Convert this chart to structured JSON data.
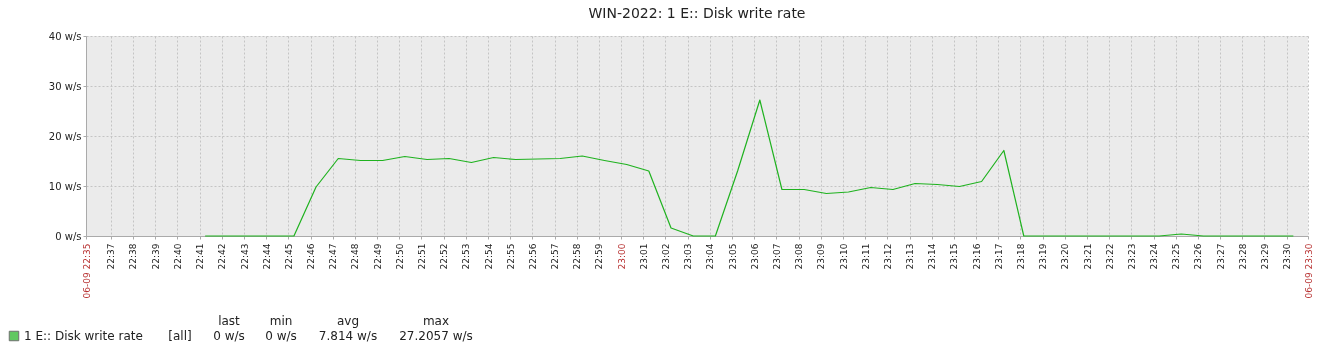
{
  "chart_data": {
    "type": "line",
    "title": "WIN-2022: 1 E:: Disk write rate",
    "xlim": [
      22.598,
      23.516
    ],
    "ylim": [
      0,
      40
    ],
    "yticks": [
      {
        "value": 0,
        "label": "0 w/s"
      },
      {
        "value": 10,
        "label": "10 w/s"
      },
      {
        "value": 20,
        "label": "20 w/s"
      },
      {
        "value": 30,
        "label": "30 w/s"
      },
      {
        "value": 40,
        "label": "40 w/s"
      }
    ],
    "xticks": [
      {
        "value": 22.598,
        "label": "06-09 22:35"
      },
      {
        "value": 22.6167,
        "label": "22:37"
      },
      {
        "value": 22.6333,
        "label": "22:38"
      },
      {
        "value": 22.65,
        "label": "22:39"
      },
      {
        "value": 22.6667,
        "label": "22:40"
      },
      {
        "value": 22.6833,
        "label": "22:41"
      },
      {
        "value": 22.7,
        "label": "22:42"
      },
      {
        "value": 22.7167,
        "label": "22:43"
      },
      {
        "value": 22.7333,
        "label": "22:44"
      },
      {
        "value": 22.75,
        "label": "22:45"
      },
      {
        "value": 22.7667,
        "label": "22:46"
      },
      {
        "value": 22.7833,
        "label": "22:47"
      },
      {
        "value": 22.8,
        "label": "22:48"
      },
      {
        "value": 22.8167,
        "label": "22:49"
      },
      {
        "value": 22.8333,
        "label": "22:50"
      },
      {
        "value": 22.85,
        "label": "22:51"
      },
      {
        "value": 22.8667,
        "label": "22:52"
      },
      {
        "value": 22.8833,
        "label": "22:53"
      },
      {
        "value": 22.9,
        "label": "22:54"
      },
      {
        "value": 22.9167,
        "label": "22:55"
      },
      {
        "value": 22.9333,
        "label": "22:56"
      },
      {
        "value": 22.95,
        "label": "22:57"
      },
      {
        "value": 22.9667,
        "label": "22:58"
      },
      {
        "value": 22.9833,
        "label": "22:59"
      },
      {
        "value": 23,
        "label": "23:00"
      },
      {
        "value": 23.0167,
        "label": "23:01"
      },
      {
        "value": 23.0333,
        "label": "23:02"
      },
      {
        "value": 23.05,
        "label": "23:03"
      },
      {
        "value": 23.0667,
        "label": "23:04"
      },
      {
        "value": 23.0833,
        "label": "23:05"
      },
      {
        "value": 23.1,
        "label": "23:06"
      },
      {
        "value": 23.1167,
        "label": "23:07"
      },
      {
        "value": 23.1333,
        "label": "23:08"
      },
      {
        "value": 23.15,
        "label": "23:09"
      },
      {
        "value": 23.1667,
        "label": "23:10"
      },
      {
        "value": 23.1833,
        "label": "23:11"
      },
      {
        "value": 23.2,
        "label": "23:12"
      },
      {
        "value": 23.2167,
        "label": "23:13"
      },
      {
        "value": 23.2333,
        "label": "23:14"
      },
      {
        "value": 23.25,
        "label": "23:15"
      },
      {
        "value": 23.2667,
        "label": "23:16"
      },
      {
        "value": 23.2833,
        "label": "23:17"
      },
      {
        "value": 23.3,
        "label": "23:18"
      },
      {
        "value": 23.3167,
        "label": "23:19"
      },
      {
        "value": 23.3333,
        "label": "23:20"
      },
      {
        "value": 23.35,
        "label": "23:21"
      },
      {
        "value": 23.3667,
        "label": "23:22"
      },
      {
        "value": 23.3833,
        "label": "23:23"
      },
      {
        "value": 23.4,
        "label": "23:24"
      },
      {
        "value": 23.4167,
        "label": "23:25"
      },
      {
        "value": 23.4333,
        "label": "23:26"
      },
      {
        "value": 23.45,
        "label": "23:27"
      },
      {
        "value": 23.4667,
        "label": "23:28"
      },
      {
        "value": 23.4833,
        "label": "23:29"
      },
      {
        "value": 23.5,
        "label": "23:30"
      },
      {
        "value": 23.516,
        "label": "06-09 23:30"
      }
    ],
    "x": [
      22.6875,
      22.7042,
      22.7208,
      22.7375,
      22.7542,
      22.7708,
      22.7875,
      22.8042,
      22.8208,
      22.8375,
      22.8542,
      22.8708,
      22.8875,
      22.9042,
      22.9208,
      22.9375,
      22.9542,
      22.9708,
      22.9875,
      23.0042,
      23.0208,
      23.0375,
      23.0542,
      23.0708,
      23.0875,
      23.1042,
      23.1208,
      23.1375,
      23.1542,
      23.1708,
      23.1875,
      23.2042,
      23.2208,
      23.2375,
      23.2542,
      23.2708,
      23.2875,
      23.3025,
      23.3208,
      23.3375,
      23.3542,
      23.3708,
      23.3875,
      23.4042,
      23.4208,
      23.4375,
      23.4542,
      23.4708,
      23.4875,
      23.505
    ],
    "series": [
      {
        "name": "1 E:: Disk write rate",
        "color": "#1fb21f",
        "values": [
          0,
          0,
          0,
          0,
          0,
          9.8,
          15.5,
          15.1,
          15.1,
          15.9,
          15.3,
          15.5,
          14.7,
          15.7,
          15.3,
          15.4,
          15.5,
          16.0,
          15.1,
          14.3,
          13.0,
          1.6,
          0,
          0,
          13.0,
          27.2,
          9.3,
          9.3,
          8.5,
          8.8,
          9.7,
          9.3,
          10.5,
          10.3,
          9.9,
          10.9,
          17.1,
          0,
          0,
          0,
          0,
          0,
          0,
          0,
          0.4,
          0,
          0,
          0,
          0,
          0
        ]
      }
    ],
    "grid": true,
    "legend": "bottom left",
    "annotations": [
      "[all]",
      "last",
      "0 w/s",
      "min",
      "0 w/s",
      "avg",
      "7.814 w/s",
      "max",
      "27.2057 w/s"
    ]
  }
}
